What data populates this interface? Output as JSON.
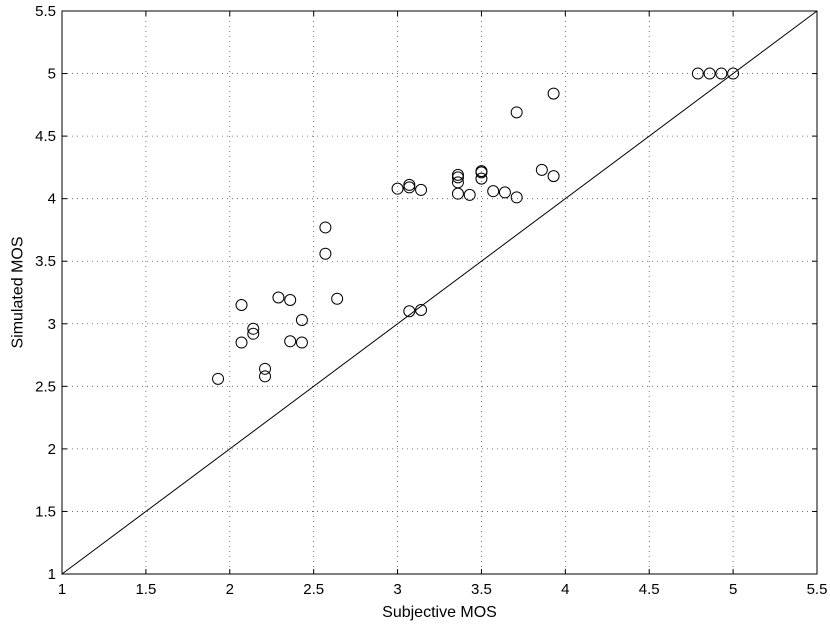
{
  "chart_data": {
    "type": "scatter",
    "title": "",
    "xlabel": "Subjective MOS",
    "ylabel": "Simulated MOS",
    "xlim": [
      1,
      5.5
    ],
    "ylim": [
      1,
      5.5
    ],
    "grid": true,
    "xticks": [
      "1",
      "1.5",
      "2",
      "2.5",
      "3",
      "3.5",
      "4",
      "4.5",
      "5",
      "5.5"
    ],
    "yticks": [
      "1",
      "1.5",
      "2",
      "2.5",
      "3",
      "3.5",
      "4",
      "4.5",
      "5",
      "5.5"
    ],
    "reference_line": {
      "from": [
        1,
        1
      ],
      "to": [
        5.5,
        5.5
      ]
    },
    "series": [
      {
        "marker": "circle",
        "color": "#000000",
        "points": [
          [
            1.93,
            2.56
          ],
          [
            2.07,
            3.15
          ],
          [
            2.07,
            2.85
          ],
          [
            2.14,
            2.96
          ],
          [
            2.14,
            2.92
          ],
          [
            2.21,
            2.64
          ],
          [
            2.21,
            2.58
          ],
          [
            2.29,
            3.21
          ],
          [
            2.36,
            3.19
          ],
          [
            2.36,
            2.86
          ],
          [
            2.43,
            3.03
          ],
          [
            2.43,
            2.85
          ],
          [
            2.57,
            3.77
          ],
          [
            2.57,
            3.56
          ],
          [
            2.64,
            3.2
          ],
          [
            3.0,
            4.08
          ],
          [
            3.07,
            4.11
          ],
          [
            3.07,
            4.09
          ],
          [
            3.07,
            3.1
          ],
          [
            3.14,
            4.07
          ],
          [
            3.14,
            3.11
          ],
          [
            3.36,
            4.19
          ],
          [
            3.36,
            4.17
          ],
          [
            3.36,
            4.13
          ],
          [
            3.36,
            4.04
          ],
          [
            3.43,
            4.03
          ],
          [
            3.5,
            4.22
          ],
          [
            3.5,
            4.21
          ],
          [
            3.5,
            4.16
          ],
          [
            3.57,
            4.06
          ],
          [
            3.64,
            4.05
          ],
          [
            3.71,
            4.69
          ],
          [
            3.71,
            4.01
          ],
          [
            3.86,
            4.23
          ],
          [
            3.93,
            4.84
          ],
          [
            3.93,
            4.18
          ],
          [
            4.79,
            5.0
          ],
          [
            4.86,
            5.0
          ],
          [
            4.93,
            5.0
          ],
          [
            5.0,
            5.0
          ]
        ]
      }
    ]
  }
}
